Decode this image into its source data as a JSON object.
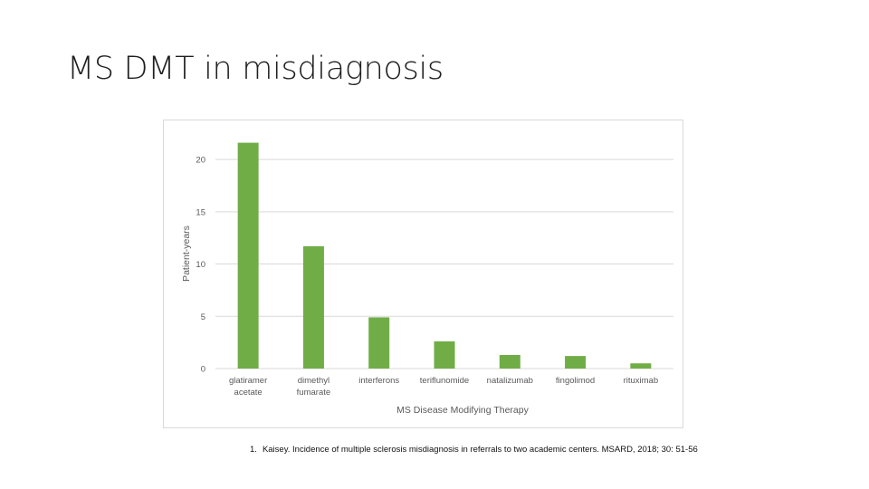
{
  "slide": {
    "title": "MS DMT in misdiagnosis"
  },
  "reference": {
    "number": "1.",
    "text": "Kaisey. Incidence of multiple sclerosis misdiagnosis in referrals to two academic centers. MSARD, 2018; 30: 51-56"
  },
  "colors": {
    "bar": "#70ad47",
    "grid": "#d9d9d9",
    "tick_text": "#595959",
    "axis_title": "#595959"
  },
  "chart_data": {
    "type": "bar",
    "categories": [
      [
        "glatiramer",
        "acetate"
      ],
      [
        "dimethyl",
        "fumarate"
      ],
      [
        "interferons"
      ],
      [
        "teriflunomide"
      ],
      [
        "natalizumab"
      ],
      [
        "fingolimod"
      ],
      [
        "rituximab"
      ]
    ],
    "values": [
      21.6,
      11.7,
      4.9,
      2.6,
      1.3,
      1.2,
      0.5
    ],
    "xlabel": "MS Disease Modifying Therapy",
    "ylabel": "Patient-years",
    "ylim": [
      0,
      22
    ],
    "yticks": [
      0,
      5,
      10,
      15,
      20
    ],
    "grid": true,
    "legend": "none"
  }
}
